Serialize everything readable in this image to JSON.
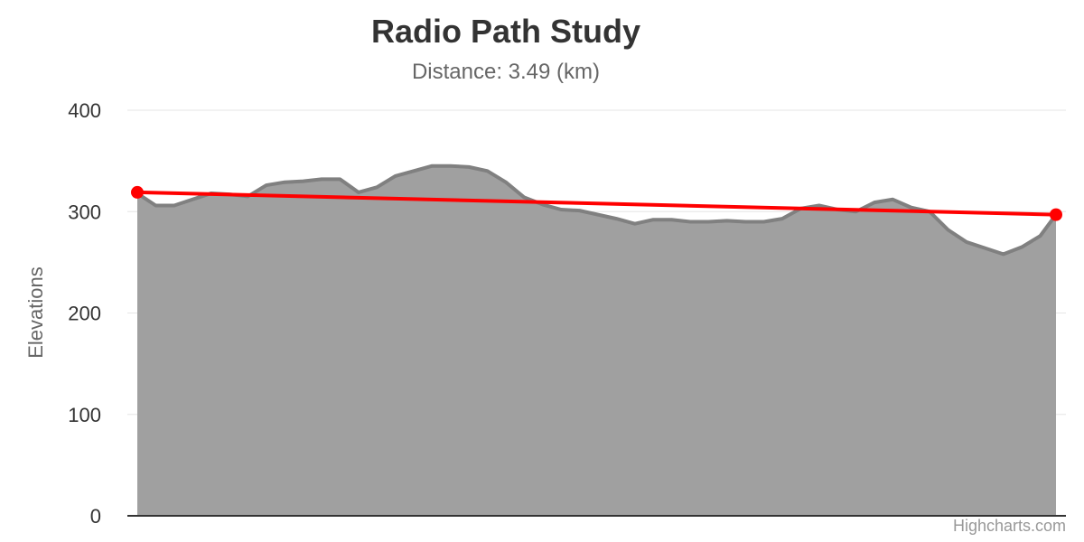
{
  "chart_data": {
    "type": "area",
    "title": "Radio Path Study",
    "subtitle": "Distance: 3.49 (km)",
    "ylabel": "Elevations",
    "ylim": [
      0,
      400
    ],
    "yticks": [
      0,
      100,
      200,
      300,
      400
    ],
    "grid": true,
    "credits": "Highcharts.com",
    "colors": {
      "terrain_fill": "#a0a0a0",
      "terrain_line": "#808080",
      "path_line": "#ff0000",
      "grid": "#e6e6e6",
      "axis": "#333333"
    },
    "series": [
      {
        "type": "area",
        "x": [
          0,
          0.07,
          0.14,
          0.21,
          0.28,
          0.35,
          0.42,
          0.49,
          0.56,
          0.63,
          0.7,
          0.77,
          0.84,
          0.91,
          0.98,
          1.05,
          1.12,
          1.19,
          1.26,
          1.33,
          1.4,
          1.47,
          1.54,
          1.61,
          1.68,
          1.75,
          1.82,
          1.89,
          1.96,
          2.03,
          2.1,
          2.17,
          2.24,
          2.31,
          2.38,
          2.45,
          2.52,
          2.59,
          2.66,
          2.73,
          2.8,
          2.87,
          2.94,
          3.01,
          3.08,
          3.15,
          3.22,
          3.29,
          3.36,
          3.43,
          3.49
        ],
        "values": [
          318,
          306,
          306,
          312,
          318,
          317,
          315,
          326,
          329,
          330,
          332,
          332,
          319,
          324,
          335,
          340,
          345,
          345,
          344,
          340,
          329,
          314,
          307,
          302,
          301,
          297,
          293,
          288,
          292,
          292,
          290,
          290,
          291,
          290,
          290,
          293,
          303,
          306,
          302,
          300,
          309,
          312,
          304,
          300,
          282,
          270,
          264,
          258,
          265,
          276,
          297
        ]
      },
      {
        "type": "line",
        "x": [
          0,
          3.49
        ],
        "values": [
          319,
          297
        ]
      }
    ]
  }
}
